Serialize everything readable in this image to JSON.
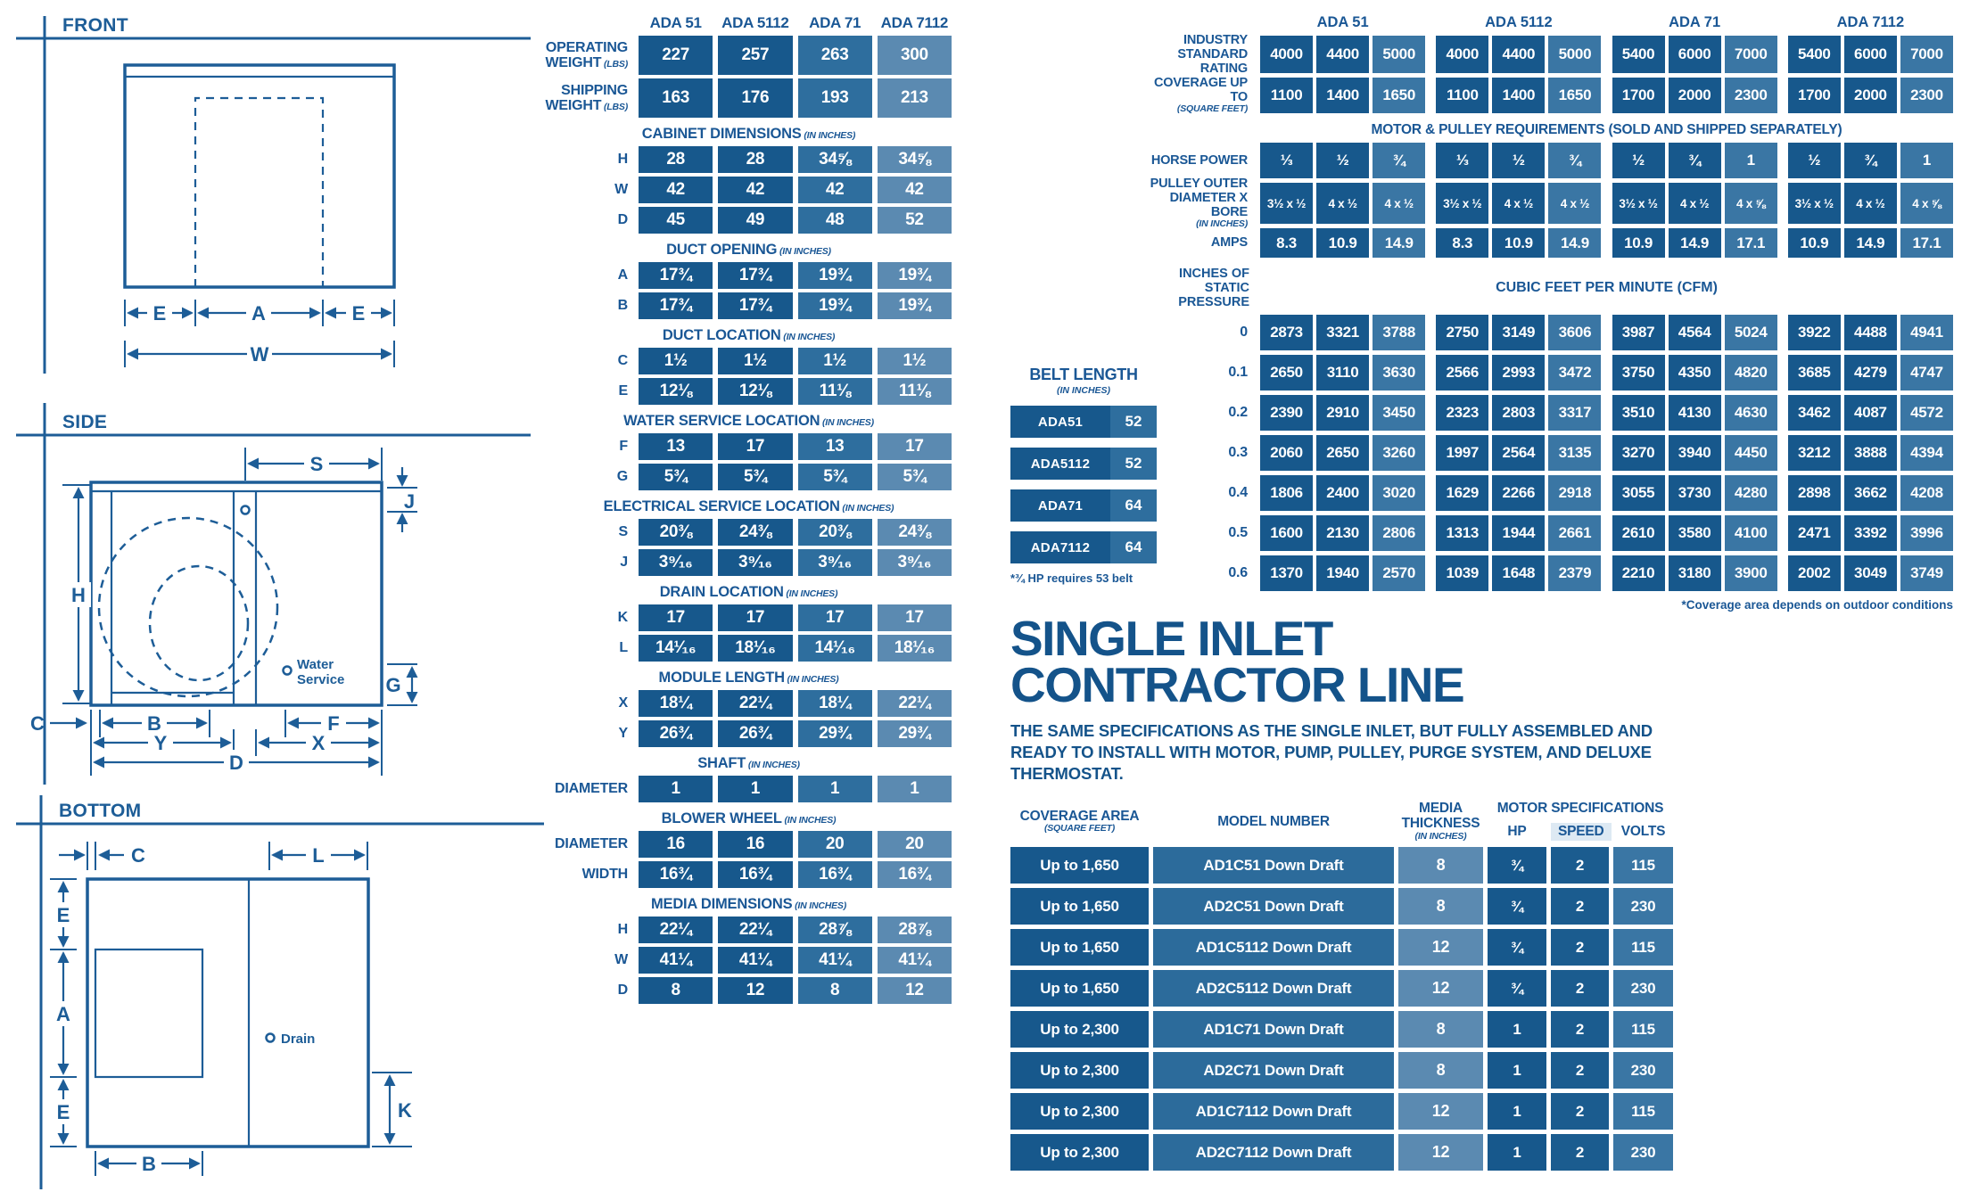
{
  "palette": {
    "text_blue": "#1a5795",
    "cell_dark": "#17588c",
    "cell_medium": "#2e6e9e",
    "cell_light": "#5b8ab1",
    "cell_sublight": "#3a76a4",
    "diagram_line": "#1d5d97",
    "speed_highlight": "#dde9f3"
  },
  "diagrams": {
    "front": {
      "title": "FRONT",
      "dim_e": "E",
      "dim_a": "A",
      "dim_w": "W"
    },
    "side": {
      "title": "SIDE",
      "dim_s": "S",
      "dim_j": "J",
      "dim_h": "H",
      "dim_g": "G",
      "dim_c": "C",
      "dim_b": "B",
      "dim_y": "Y",
      "dim_f": "F",
      "dim_x": "X",
      "dim_d": "D",
      "water_line1": "Water",
      "water_line2": "Service"
    },
    "bottom": {
      "title": "BOTTOM",
      "dim_c": "C",
      "dim_l": "L",
      "dim_e": "E",
      "dim_a": "A",
      "dim_b": "B",
      "dim_k": "K",
      "drain": "Drain"
    }
  },
  "spec_table": {
    "columns": [
      "ADA 51",
      "ADA 5112",
      "ADA 71",
      "ADA 7112"
    ],
    "sections": [
      {
        "title": "",
        "unit": "",
        "rows": [
          {
            "label": "OPERATING WEIGHT",
            "unit": "(LBS)",
            "tall": true,
            "values": [
              "227",
              "257",
              "263",
              "300"
            ]
          },
          {
            "label": "SHIPPING WEIGHT",
            "unit": "(LBS)",
            "tall": true,
            "values": [
              "163",
              "176",
              "193",
              "213"
            ]
          }
        ]
      },
      {
        "title": "CABINET DIMENSIONS",
        "unit": "(IN INCHES)",
        "rows": [
          {
            "label": "H",
            "values": [
              "28",
              "28",
              "34⅝",
              "34⅝"
            ]
          },
          {
            "label": "W",
            "values": [
              "42",
              "42",
              "42",
              "42"
            ]
          },
          {
            "label": "D",
            "values": [
              "45",
              "49",
              "48",
              "52"
            ]
          }
        ]
      },
      {
        "title": "DUCT OPENING",
        "unit": "(IN INCHES)",
        "rows": [
          {
            "label": "A",
            "values": [
              "17¾",
              "17¾",
              "19¾",
              "19¾"
            ]
          },
          {
            "label": "B",
            "values": [
              "17¾",
              "17¾",
              "19¾",
              "19¾"
            ]
          }
        ]
      },
      {
        "title": "DUCT LOCATION",
        "unit": "(IN INCHES)",
        "rows": [
          {
            "label": "C",
            "values": [
              "1½",
              "1½",
              "1½",
              "1½"
            ]
          },
          {
            "label": "E",
            "values": [
              "12⅛",
              "12⅛",
              "11⅛",
              "11⅛"
            ]
          }
        ]
      },
      {
        "title": "WATER SERVICE LOCATION",
        "unit": "(IN INCHES)",
        "rows": [
          {
            "label": "F",
            "values": [
              "13",
              "17",
              "13",
              "17"
            ]
          },
          {
            "label": "G",
            "values": [
              "5¾",
              "5¾",
              "5¾",
              "5¾"
            ]
          }
        ]
      },
      {
        "title": "ELECTRICAL SERVICE LOCATION",
        "unit": "(IN INCHES)",
        "rows": [
          {
            "label": "S",
            "values": [
              "20⅜",
              "24⅜",
              "20⅜",
              "24⅜"
            ]
          },
          {
            "label": "J",
            "values": [
              "3⁹⁄₁₆",
              "3⁹⁄₁₆",
              "3⁹⁄₁₆",
              "3⁹⁄₁₆"
            ]
          }
        ]
      },
      {
        "title": "DRAIN LOCATION",
        "unit": "(IN INCHES)",
        "rows": [
          {
            "label": "K",
            "values": [
              "17",
              "17",
              "17",
              "17"
            ]
          },
          {
            "label": "L",
            "values": [
              "14¹⁄₁₆",
              "18¹⁄₁₆",
              "14¹⁄₁₆",
              "18¹⁄₁₆"
            ]
          }
        ]
      },
      {
        "title": "MODULE LENGTH",
        "unit": "(IN INCHES)",
        "rows": [
          {
            "label": "X",
            "values": [
              "18¼",
              "22¼",
              "18¼",
              "22¼"
            ]
          },
          {
            "label": "Y",
            "values": [
              "26¾",
              "26¾",
              "29¾",
              "29¾"
            ]
          }
        ]
      },
      {
        "title": "SHAFT",
        "unit": "(IN INCHES)",
        "rows": [
          {
            "label": "DIAMETER",
            "values": [
              "1",
              "1",
              "1",
              "1"
            ]
          }
        ]
      },
      {
        "title": "BLOWER WHEEL",
        "unit": "(IN INCHES)",
        "rows": [
          {
            "label": "DIAMETER",
            "values": [
              "16",
              "16",
              "20",
              "20"
            ]
          },
          {
            "label": "WIDTH",
            "values": [
              "16¾",
              "16¾",
              "16¾",
              "16¾"
            ]
          }
        ]
      },
      {
        "title": "MEDIA DIMENSIONS",
        "unit": "(IN INCHES)",
        "rows": [
          {
            "label": "H",
            "values": [
              "22¼",
              "22¼",
              "28⅞",
              "28⅞"
            ]
          },
          {
            "label": "W",
            "values": [
              "41¼",
              "41¼",
              "41¼",
              "41¼"
            ]
          },
          {
            "label": "D",
            "values": [
              "8",
              "12",
              "8",
              "12"
            ]
          }
        ]
      }
    ]
  },
  "performance": {
    "header": [
      "ADA 51",
      "ADA 5112",
      "ADA 71",
      "ADA 7112"
    ],
    "rating_rows": [
      {
        "label": "INDUSTRY STANDARD RATING",
        "unit": "",
        "values": [
          [
            "4000",
            "4400",
            "5000"
          ],
          [
            "4000",
            "4400",
            "5000"
          ],
          [
            "5400",
            "6000",
            "7000"
          ],
          [
            "5400",
            "6000",
            "7000"
          ]
        ]
      },
      {
        "label": "COVERAGE UP TO",
        "unit": "(SQUARE FEET)",
        "values": [
          [
            "1100",
            "1400",
            "1650"
          ],
          [
            "1100",
            "1400",
            "1650"
          ],
          [
            "1700",
            "2000",
            "2300"
          ],
          [
            "1700",
            "2000",
            "2300"
          ]
        ]
      }
    ],
    "motor_band_title": "MOTOR & PULLEY REQUIREMENTS",
    "motor_band_subtitle": "(SOLD AND SHIPPED SEPARATELY)",
    "motor_rows": [
      {
        "label": "HORSE POWER",
        "unit": "",
        "values": [
          [
            "⅓",
            "½",
            "¾"
          ],
          [
            "⅓",
            "½",
            "¾"
          ],
          [
            "½",
            "¾",
            "1"
          ],
          [
            "½",
            "¾",
            "1"
          ]
        ]
      },
      {
        "label": "PULLEY OUTER DIAMETER X BORE",
        "unit": "(IN INCHES)",
        "values": [
          [
            "3½ x ½",
            "4 x ½",
            "4 x ½"
          ],
          [
            "3½ x ½",
            "4 x ½",
            "4 x ½"
          ],
          [
            "3½ x ½",
            "4 x ½",
            "4 x ⅝"
          ],
          [
            "3½ x ½",
            "4 x ½",
            "4 x ⅝"
          ]
        ]
      },
      {
        "label": "AMPS",
        "unit": "",
        "values": [
          [
            "8.3",
            "10.9",
            "14.9"
          ],
          [
            "8.3",
            "10.9",
            "14.9"
          ],
          [
            "10.9",
            "14.9",
            "17.1"
          ],
          [
            "10.9",
            "14.9",
            "17.1"
          ]
        ]
      }
    ],
    "cfm": {
      "row_label": "INCHES OF STATIC PRESSURE",
      "title": "CUBIC FEET PER MINUTE (CFM)",
      "pressures": [
        "0",
        "0.1",
        "0.2",
        "0.3",
        "0.4",
        "0.5",
        "0.6"
      ],
      "values": [
        [
          "2873",
          "3321",
          "3788",
          "2750",
          "3149",
          "3606",
          "3987",
          "4564",
          "5024",
          "3922",
          "4488",
          "4941"
        ],
        [
          "2650",
          "3110",
          "3630",
          "2566",
          "2993",
          "3472",
          "3750",
          "4350",
          "4820",
          "3685",
          "4279",
          "4747"
        ],
        [
          "2390",
          "2910",
          "3450",
          "2323",
          "2803",
          "3317",
          "3510",
          "4130",
          "4630",
          "3462",
          "4087",
          "4572"
        ],
        [
          "2060",
          "2650",
          "3260",
          "1997",
          "2564",
          "3135",
          "3270",
          "3940",
          "4450",
          "3212",
          "3888",
          "4394"
        ],
        [
          "1806",
          "2400",
          "3020",
          "1629",
          "2266",
          "2918",
          "3055",
          "3730",
          "4280",
          "2898",
          "3662",
          "4208"
        ],
        [
          "1600",
          "2130",
          "2806",
          "1313",
          "1944",
          "2661",
          "2610",
          "3580",
          "4100",
          "2471",
          "3392",
          "3996"
        ],
        [
          "1370",
          "1940",
          "2570",
          "1039",
          "1648",
          "2379",
          "2210",
          "3180",
          "3900",
          "2002",
          "3049",
          "3749"
        ]
      ],
      "footnote": "*Coverage area depends on outdoor conditions"
    }
  },
  "belt": {
    "title": "BELT LENGTH",
    "unit": "(IN INCHES)",
    "rows": [
      {
        "model": "ADA51",
        "length": "52"
      },
      {
        "model": "ADA5112",
        "length": "52"
      },
      {
        "model": "ADA71",
        "length": "64"
      },
      {
        "model": "ADA7112",
        "length": "64"
      }
    ],
    "footnote": "*¾ HP requires 53 belt"
  },
  "contractor": {
    "title_line1": "SINGLE INLET",
    "title_line2": "CONTRACTOR LINE",
    "description": "THE SAME SPECIFICATIONS AS THE SINGLE INLET, BUT FULLY ASSEMBLED AND READY TO INSTALL WITH MOTOR, PUMP, PULLEY, PURGE SYSTEM, AND DELUXE THERMOSTAT.",
    "headers": {
      "coverage": "COVERAGE AREA",
      "coverage_unit": "(SQUARE FEET)",
      "model": "MODEL NUMBER",
      "media": "MEDIA THICKNESS",
      "media_unit": "(IN INCHES)",
      "motor": "MOTOR SPECIFICATIONS",
      "hp": "HP",
      "speed": "SPEED",
      "volts": "VOLTS"
    },
    "rows": [
      {
        "coverage": "Up to 1,650",
        "model": "AD1C51 Down Draft",
        "media": "8",
        "hp": "¾",
        "speed": "2",
        "volts": "115"
      },
      {
        "coverage": "Up to 1,650",
        "model": "AD2C51 Down Draft",
        "media": "8",
        "hp": "¾",
        "speed": "2",
        "volts": "230"
      },
      {
        "coverage": "Up to 1,650",
        "model": "AD1C5112 Down Draft",
        "media": "12",
        "hp": "¾",
        "speed": "2",
        "volts": "115"
      },
      {
        "coverage": "Up to 1,650",
        "model": "AD2C5112 Down Draft",
        "media": "12",
        "hp": "¾",
        "speed": "2",
        "volts": "230"
      },
      {
        "coverage": "Up to 2,300",
        "model": "AD1C71 Down Draft",
        "media": "8",
        "hp": "1",
        "speed": "2",
        "volts": "115"
      },
      {
        "coverage": "Up to 2,300",
        "model": "AD2C71 Down Draft",
        "media": "8",
        "hp": "1",
        "speed": "2",
        "volts": "230"
      },
      {
        "coverage": "Up to 2,300",
        "model": "AD1C7112 Down Draft",
        "media": "12",
        "hp": "1",
        "speed": "2",
        "volts": "115"
      },
      {
        "coverage": "Up to 2,300",
        "model": "AD2C7112 Down Draft",
        "media": "12",
        "hp": "1",
        "speed": "2",
        "volts": "230"
      }
    ]
  }
}
